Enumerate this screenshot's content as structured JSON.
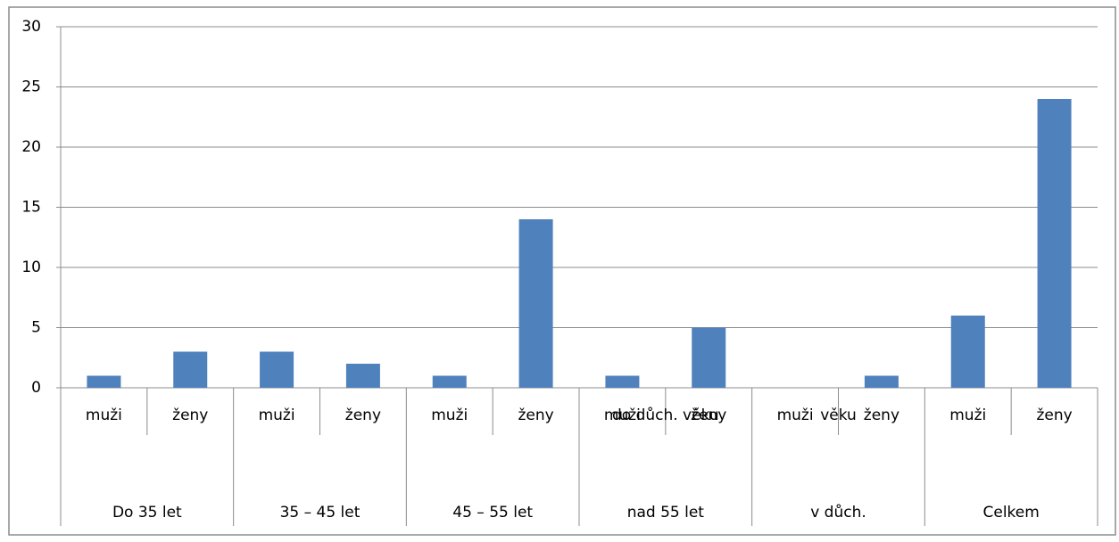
{
  "chart_data": {
    "type": "bar",
    "categories": [
      "muži",
      "ženy",
      "muži",
      "ženy",
      "muži",
      "ženy",
      "muži",
      "ženy",
      "muži",
      "ženy",
      "muži",
      "ženy"
    ],
    "groups": [
      [
        "Do 35 let"
      ],
      [
        "35 – 45 let"
      ],
      [
        "45 – 55 let"
      ],
      [
        "do důch. věku",
        "nad 55 let"
      ],
      [
        "věku",
        "v důch."
      ],
      [
        "Celkem"
      ]
    ],
    "values": [
      1,
      3,
      3,
      2,
      1,
      14,
      1,
      5,
      0,
      1,
      6,
      24
    ],
    "color": "#4f81bd",
    "ylim": [
      0,
      30
    ],
    "yticks": [
      0,
      5,
      10,
      15,
      20,
      25,
      30
    ],
    "grid": true
  }
}
